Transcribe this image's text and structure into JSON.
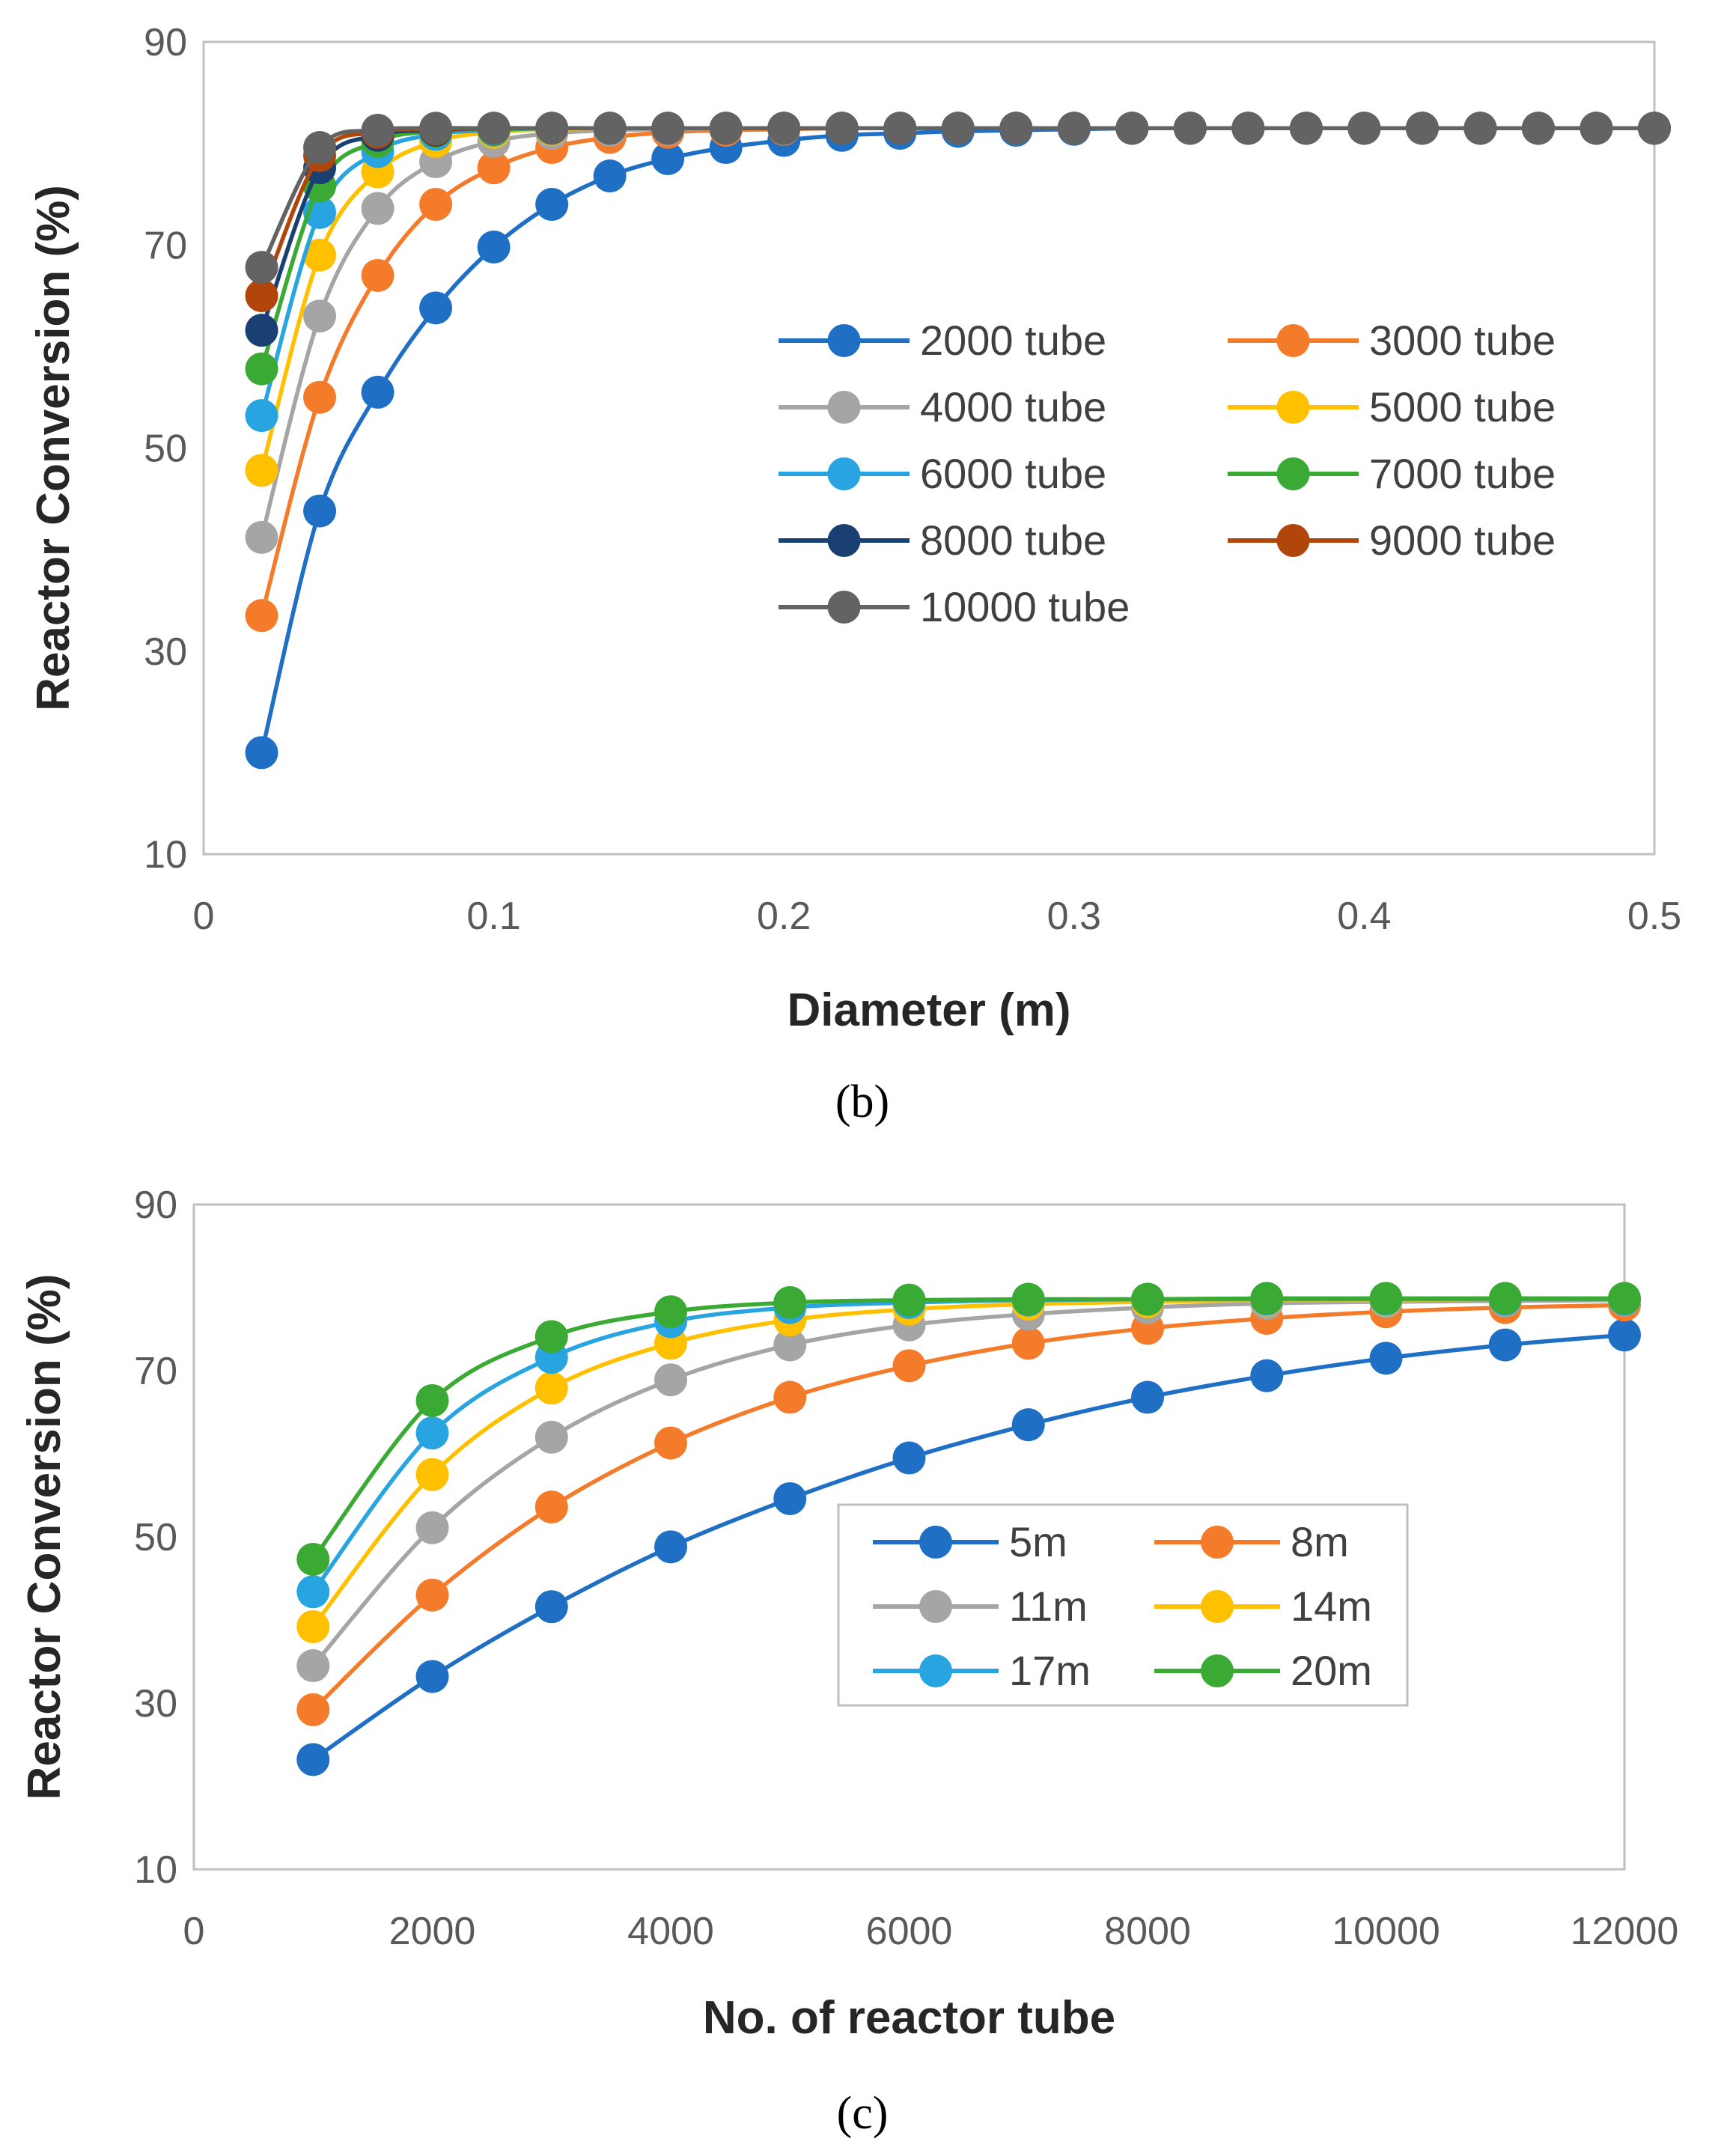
{
  "chart_data": [
    {
      "type": "line",
      "panel_label": "(b)",
      "title": "",
      "xlabel": "Diameter (m)",
      "ylabel": "Reactor Conversion (%)",
      "xlim": [
        0,
        0.5
      ],
      "ylim": [
        10,
        90
      ],
      "xticks": [
        0,
        0.1,
        0.2,
        0.3,
        0.4,
        0.5
      ],
      "xtick_labels": [
        "0",
        "0.1",
        "0.2",
        "0.3",
        "0.4",
        "0.5"
      ],
      "yticks": [
        10,
        30,
        50,
        70,
        90
      ],
      "ytick_labels": [
        "10",
        "30",
        "50",
        "70",
        "90"
      ],
      "grid": false,
      "legend_position": "center-right",
      "legend_columns": 2,
      "x": [
        0.02,
        0.04,
        0.06,
        0.08,
        0.1,
        0.12,
        0.14,
        0.16,
        0.18,
        0.2,
        0.22,
        0.24,
        0.26,
        0.28,
        0.3,
        0.32,
        0.34,
        0.36,
        0.38,
        0.4,
        0.42,
        0.44,
        0.46,
        0.48,
        0.5
      ],
      "series": [
        {
          "name": "2000 tube",
          "color": "#1F6FC5",
          "values": [
            20,
            43.8,
            55.5,
            63.8,
            69.8,
            74,
            76.8,
            78.5,
            79.6,
            80.3,
            80.8,
            81,
            81.2,
            81.3,
            81.4,
            81.5,
            81.5,
            81.5,
            81.5,
            81.5,
            81.5,
            81.5,
            81.5,
            81.5,
            81.5
          ]
        },
        {
          "name": "3000 tube",
          "color": "#F47B2A",
          "values": [
            33.5,
            55,
            67,
            74,
            77.6,
            79.6,
            80.6,
            81.1,
            81.3,
            81.4,
            81.5,
            81.5,
            81.5,
            81.5,
            81.5,
            81.5,
            81.5,
            81.5,
            81.5,
            81.5,
            81.5,
            81.5,
            81.5,
            81.5,
            81.5
          ]
        },
        {
          "name": "4000 tube",
          "color": "#A5A5A5",
          "values": [
            41.2,
            63,
            73.6,
            78.2,
            80.2,
            81,
            81.3,
            81.4,
            81.5,
            81.5,
            81.5,
            81.5,
            81.5,
            81.5,
            81.5,
            81.5,
            81.5,
            81.5,
            81.5,
            81.5,
            81.5,
            81.5,
            81.5,
            81.5,
            81.5
          ]
        },
        {
          "name": "5000 tube",
          "color": "#FFC000",
          "values": [
            47.8,
            69,
            77.2,
            80.2,
            81.1,
            81.4,
            81.5,
            81.5,
            81.5,
            81.5,
            81.5,
            81.5,
            81.5,
            81.5,
            81.5,
            81.5,
            81.5,
            81.5,
            81.5,
            81.5,
            81.5,
            81.5,
            81.5,
            81.5,
            81.5
          ]
        },
        {
          "name": "6000 tube",
          "color": "#28A4E0",
          "values": [
            53.2,
            73.2,
            79.2,
            80.9,
            81.3,
            81.5,
            81.5,
            81.5,
            81.5,
            81.5,
            81.5,
            81.5,
            81.5,
            81.5,
            81.5,
            81.5,
            81.5,
            81.5,
            81.5,
            81.5,
            81.5,
            81.5,
            81.5,
            81.5,
            81.5
          ]
        },
        {
          "name": "7000 tube",
          "color": "#3BAA35",
          "values": [
            57.8,
            75.8,
            80.2,
            81.2,
            81.4,
            81.5,
            81.5,
            81.5,
            81.5,
            81.5,
            81.5,
            81.5,
            81.5,
            81.5,
            81.5,
            81.5,
            81.5,
            81.5,
            81.5,
            81.5,
            81.5,
            81.5,
            81.5,
            81.5,
            81.5
          ]
        },
        {
          "name": "8000 tube",
          "color": "#1A3F73",
          "values": [
            61.6,
            77.6,
            80.8,
            81.3,
            81.5,
            81.5,
            81.5,
            81.5,
            81.5,
            81.5,
            81.5,
            81.5,
            81.5,
            81.5,
            81.5,
            81.5,
            81.5,
            81.5,
            81.5,
            81.5,
            81.5,
            81.5,
            81.5,
            81.5,
            81.5
          ]
        },
        {
          "name": "9000 tube",
          "color": "#B0460C",
          "values": [
            65,
            78.8,
            81.1,
            81.4,
            81.5,
            81.5,
            81.5,
            81.5,
            81.5,
            81.5,
            81.5,
            81.5,
            81.5,
            81.5,
            81.5,
            81.5,
            81.5,
            81.5,
            81.5,
            81.5,
            81.5,
            81.5,
            81.5,
            81.5,
            81.5
          ]
        },
        {
          "name": "10000 tube",
          "color": "#636363",
          "values": [
            67.8,
            79.6,
            81.3,
            81.5,
            81.5,
            81.5,
            81.5,
            81.5,
            81.5,
            81.5,
            81.5,
            81.5,
            81.5,
            81.5,
            81.5,
            81.5,
            81.5,
            81.5,
            81.5,
            81.5,
            81.5,
            81.5,
            81.5,
            81.5,
            81.5
          ]
        }
      ]
    },
    {
      "type": "line",
      "panel_label": "(c)",
      "title": "",
      "xlabel": "No. of reactor tube",
      "ylabel": "Reactor Conversion (%)",
      "xlim": [
        0,
        12000
      ],
      "ylim": [
        10,
        90
      ],
      "xticks": [
        0,
        2000,
        4000,
        6000,
        8000,
        10000,
        12000
      ],
      "xtick_labels": [
        "0",
        "2000",
        "4000",
        "6000",
        "8000",
        "10000",
        "12000"
      ],
      "yticks": [
        10,
        30,
        50,
        70,
        90
      ],
      "ytick_labels": [
        "10",
        "30",
        "50",
        "70",
        "90"
      ],
      "grid": false,
      "legend_position": "center-right",
      "legend_columns": 2,
      "x": [
        1000,
        2000,
        3000,
        4000,
        5000,
        6000,
        7000,
        8000,
        9000,
        10000,
        11000,
        12000
      ],
      "series": [
        {
          "name": "5m",
          "color": "#1F6FC5",
          "values": [
            23.2,
            33.2,
            41.6,
            48.8,
            54.6,
            59.5,
            63.5,
            66.8,
            69.4,
            71.5,
            73.1,
            74.3
          ]
        },
        {
          "name": "8m",
          "color": "#F47B2A",
          "values": [
            29.2,
            43,
            53.6,
            61.3,
            66.8,
            70.6,
            73.3,
            75.1,
            76.3,
            77.1,
            77.6,
            77.9
          ]
        },
        {
          "name": "11m",
          "color": "#A5A5A5",
          "values": [
            34.5,
            51.1,
            62,
            68.9,
            73.1,
            75.5,
            76.8,
            77.6,
            78.1,
            78.3,
            78.4,
            78.5
          ]
        },
        {
          "name": "14m",
          "color": "#FFC000",
          "values": [
            39.2,
            57.5,
            67.9,
            73.3,
            76.1,
            77.4,
            78,
            78.3,
            78.5,
            78.5,
            78.6,
            78.6
          ]
        },
        {
          "name": "17m",
          "color": "#28A4E0",
          "values": [
            43.4,
            62.5,
            71.6,
            75.9,
            77.6,
            78.2,
            78.5,
            78.6,
            78.6,
            78.6,
            78.6,
            78.6
          ]
        },
        {
          "name": "20m",
          "color": "#3BAA35",
          "values": [
            47.3,
            66.4,
            74.1,
            77.1,
            78.2,
            78.5,
            78.6,
            78.6,
            78.7,
            78.7,
            78.7,
            78.7
          ]
        }
      ]
    }
  ]
}
